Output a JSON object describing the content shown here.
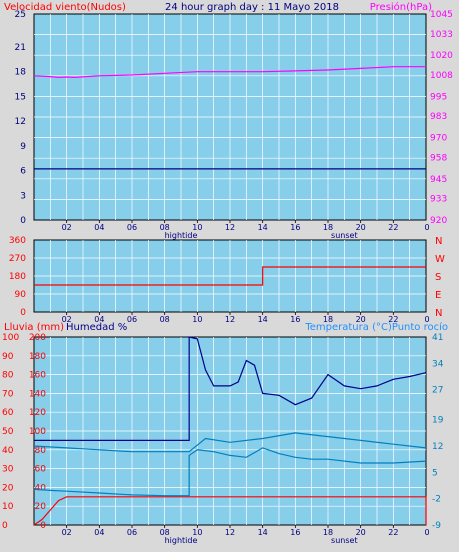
{
  "header": {
    "left_title": "Velocidad viento(Nudos)",
    "center_title": "24 hour graph day : 11 Mayo 2018",
    "right_title": "Presión(hPa)"
  },
  "colors": {
    "plot_bg": "#87ceeb",
    "frame_bg": "#d9d9d9",
    "grid": "#ffffff",
    "red": "#ff0000",
    "magenta": "#ff00ff",
    "navy": "#000080",
    "darkblue": "#00008b",
    "teal": "#0080c0",
    "cyan_label": "#1e90ff"
  },
  "hour_ticks": [
    "02",
    "04",
    "06",
    "08",
    "10",
    "12",
    "14",
    "16",
    "18",
    "20",
    "22"
  ],
  "hour_last_tick": "0",
  "hightide_label": "hightide",
  "sunset_label": "sunset",
  "chart_data": [
    {
      "type": "line",
      "title": "24 hour graph day : 11 Mayo 2018",
      "xlim": [
        0,
        24
      ],
      "left_axis": {
        "label": "Velocidad viento(Nudos)",
        "ticks": [
          "0",
          "3",
          "6",
          "9",
          "12",
          "15",
          "18",
          "21",
          "25"
        ],
        "ylim": [
          0,
          25
        ]
      },
      "right_axis": {
        "label": "Presión(hPa)",
        "ticks": [
          "920",
          "933",
          "945",
          "958",
          "970",
          "983",
          "995",
          "1008",
          "1020",
          "1033",
          "1045"
        ],
        "ylim": [
          920,
          1045
        ]
      },
      "series": [
        {
          "axis": "left",
          "color": "#000080",
          "x": [
            0,
            24
          ],
          "y": [
            6.2,
            6.2
          ]
        },
        {
          "axis": "right",
          "color": "#ff00ff",
          "x": [
            0,
            1,
            1.5,
            2,
            2.5,
            4,
            6,
            8,
            10,
            12,
            14,
            16,
            18,
            20,
            22,
            24
          ],
          "y": [
            1007.5,
            1007,
            1006.5,
            1006.8,
            1006.5,
            1007.5,
            1008,
            1009,
            1010,
            1010,
            1010,
            1010.5,
            1011,
            1012,
            1013,
            1013
          ]
        }
      ]
    },
    {
      "type": "line",
      "xlim": [
        0,
        24
      ],
      "left_axis": {
        "ticks": [
          "0",
          "90",
          "180",
          "270",
          "360"
        ],
        "ylim": [
          0,
          360
        ]
      },
      "right_axis": {
        "ticks": [
          "N",
          "E",
          "S",
          "W",
          "N"
        ]
      },
      "series": [
        {
          "axis": "left",
          "color": "#ff0000",
          "x": [
            0,
            14,
            14,
            24
          ],
          "y": [
            135,
            135,
            225,
            225
          ]
        }
      ]
    },
    {
      "type": "line",
      "legend": [
        "Lluvia (mm)",
        "Humedad %",
        "Temperatura (°C)",
        "Punto rocío"
      ],
      "xlim": [
        0,
        24
      ],
      "rain_axis": {
        "label": "Lluvia (mm)",
        "ticks": [
          "0",
          "10",
          "20",
          "30",
          "40",
          "50",
          "60",
          "70",
          "80",
          "90",
          "100"
        ],
        "ylim": [
          0,
          100
        ]
      },
      "humidity_axis": {
        "label": "Humedad %",
        "ticks": [
          "0",
          "20",
          "40",
          "60",
          "80",
          "100",
          "120",
          "140",
          "160",
          "180",
          "200"
        ],
        "ylim": [
          0,
          200
        ]
      },
      "temp_axis": {
        "label": "Temperatura (°C)Punto rocío",
        "ticks": [
          "-9",
          "-2",
          "5",
          "12",
          "19",
          "27",
          "34",
          "41"
        ],
        "ylim": [
          -9,
          41
        ]
      },
      "series": [
        {
          "name": "Lluvia (mm)",
          "axis": "rain",
          "color": "#ff0000",
          "x": [
            0,
            0.5,
            1,
            1.5,
            2,
            24,
            24
          ],
          "y": [
            0,
            3,
            8,
            13,
            15,
            15,
            0
          ]
        },
        {
          "name": "Humedad %",
          "axis": "humidity",
          "color": "#00008b",
          "x": [
            0,
            9.5,
            9.5,
            10,
            10.5,
            11,
            12,
            12.5,
            13,
            13.5,
            14,
            15,
            16,
            17,
            18,
            19,
            20,
            21,
            22,
            23,
            24
          ],
          "y": [
            90,
            90,
            200,
            198,
            165,
            148,
            148,
            152,
            175,
            170,
            140,
            138,
            128,
            135,
            160,
            148,
            145,
            148,
            155,
            158,
            162
          ]
        },
        {
          "name": "Temperatura (°C)",
          "axis": "temp",
          "color": "#0080c0",
          "x": [
            0,
            2,
            4,
            6,
            8,
            9.5,
            10.5,
            12,
            14,
            16,
            18,
            20,
            22,
            24
          ],
          "y": [
            12,
            11.5,
            11,
            10.5,
            10.5,
            10.5,
            14,
            13,
            14,
            15.5,
            14.5,
            13.5,
            12.5,
            11.5
          ]
        },
        {
          "name": "Punto rocío",
          "axis": "temp",
          "color": "#0080c0",
          "x": [
            0,
            1,
            2,
            4,
            6,
            8,
            9.5,
            9.5,
            10,
            11,
            12,
            13,
            14,
            15,
            16,
            17,
            18,
            20,
            22,
            24
          ],
          "y": [
            0.5,
            0.2,
            0,
            -0.5,
            -1,
            -1.2,
            -1.2,
            9.5,
            11,
            10.5,
            9.5,
            9,
            11.5,
            10,
            9,
            8.5,
            8.5,
            7.5,
            7.5,
            8
          ]
        }
      ]
    }
  ]
}
